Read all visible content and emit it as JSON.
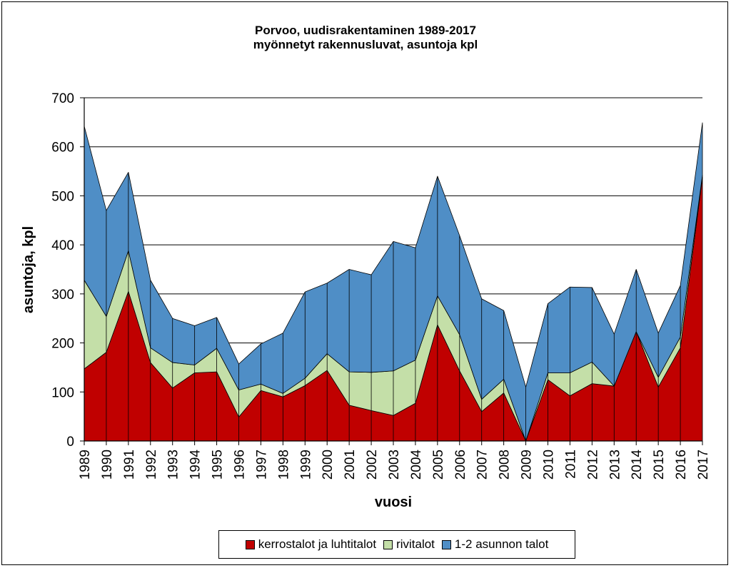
{
  "chart_data": {
    "type": "area",
    "stacked": true,
    "title": "Porvoo, uudisrakentaminen 1989-2017",
    "subtitle": "myönnetyt rakennusluvat, asuntoja kpl",
    "xlabel": "vuosi",
    "ylabel": "asuntoja,  kpl",
    "ylim": [
      0,
      700
    ],
    "yticks": [
      0,
      100,
      200,
      300,
      400,
      500,
      600,
      700
    ],
    "grid": true,
    "legend_position": "bottom",
    "x": [
      1989,
      1990,
      1991,
      1992,
      1993,
      1994,
      1995,
      1996,
      1997,
      1998,
      1999,
      2000,
      2001,
      2002,
      2003,
      2004,
      2005,
      2006,
      2007,
      2008,
      2009,
      2010,
      2011,
      2012,
      2013,
      2014,
      2015,
      2016,
      2017
    ],
    "series": [
      {
        "name": "kerrostalot ja luhtitalot",
        "color": "#c00000",
        "values": [
          147,
          181,
          305,
          160,
          108,
          139,
          141,
          49,
          103,
          90,
          113,
          144,
          73,
          62,
          52,
          77,
          237,
          143,
          60,
          98,
          0,
          125,
          92,
          117,
          112,
          223,
          110,
          190,
          538
        ]
      },
      {
        "name": "rivitalot",
        "color": "#c4dfa8",
        "values": [
          181,
          73,
          83,
          30,
          52,
          16,
          48,
          55,
          13,
          7,
          15,
          34,
          68,
          78,
          91,
          88,
          59,
          74,
          25,
          28,
          0,
          14,
          47,
          44,
          0,
          0,
          20,
          22,
          4
        ]
      },
      {
        "name": "1-2 asunnon talot",
        "color": "#4f8ec6",
        "values": [
          314,
          216,
          160,
          138,
          90,
          80,
          63,
          53,
          82,
          123,
          176,
          144,
          209,
          199,
          264,
          229,
          244,
          202,
          205,
          140,
          110,
          141,
          175,
          152,
          106,
          127,
          90,
          105,
          107
        ]
      }
    ]
  },
  "legend": {
    "items": [
      {
        "label": "kerrostalot ja luhtitalot",
        "color": "#c00000"
      },
      {
        "label": "rivitalot",
        "color": "#c4dfa8"
      },
      {
        "label": "1-2 asunnon talot",
        "color": "#4f8ec6"
      }
    ]
  }
}
